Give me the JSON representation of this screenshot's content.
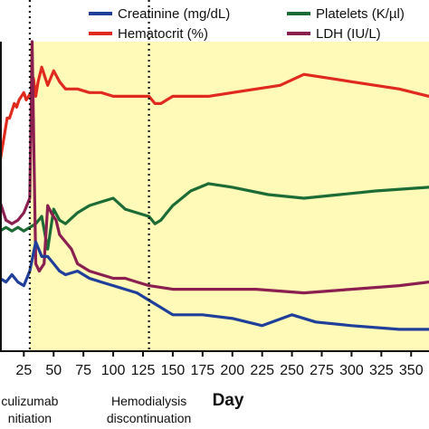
{
  "chart_data": {
    "type": "line",
    "xlabel": "Day",
    "ylabel": "",
    "xlim": [
      5,
      365
    ],
    "shaded_region": [
      30,
      365
    ],
    "x_ticks": [
      "25",
      "50",
      "75",
      "100",
      "125",
      "150",
      "175",
      "200",
      "225",
      "250",
      "275",
      "300",
      "325",
      "350"
    ],
    "x_tick_values": [
      25,
      50,
      75,
      100,
      125,
      150,
      175,
      200,
      225,
      250,
      275,
      300,
      325,
      350
    ],
    "annotations": [
      {
        "x": 30,
        "lines": [
          "culizumab",
          "nitiation"
        ]
      },
      {
        "x": 130,
        "lines": [
          "Hemodialysis",
          "discontinuation"
        ]
      }
    ],
    "legend": [
      {
        "label": "Creatinine (mg/dL)",
        "color": "#1f3f9a"
      },
      {
        "label": "Hematocrit (%)",
        "color": "#e02a1e"
      },
      {
        "label": "Platelets (K/µl)",
        "color": "#1d6b35"
      },
      {
        "label": "LDH (IU/L)",
        "color": "#8b1f4f"
      }
    ],
    "series": [
      {
        "name": "Hematocrit (%)",
        "color": "#e02a1e",
        "x": [
          5,
          7,
          9,
          11,
          13,
          15,
          17,
          19,
          21,
          23,
          25,
          27,
          29,
          31,
          33,
          35,
          37,
          40,
          45,
          50,
          55,
          60,
          70,
          80,
          90,
          100,
          110,
          120,
          130,
          135,
          140,
          145,
          150,
          160,
          180,
          200,
          220,
          240,
          260,
          280,
          300,
          320,
          340,
          365
        ],
        "y": [
          52,
          56,
          60,
          64,
          64,
          66,
          68,
          67,
          69,
          70,
          71,
          69,
          70,
          71,
          75,
          70,
          74,
          78,
          73,
          77,
          74,
          72,
          72,
          71,
          71,
          70,
          70,
          70,
          70,
          68,
          68,
          69,
          70,
          70,
          70,
          71,
          72,
          73,
          76,
          75,
          74,
          73,
          72,
          70
        ]
      },
      {
        "name": "Platelets (K/µl)",
        "color": "#1d6b35",
        "x": [
          5,
          10,
          15,
          20,
          25,
          30,
          35,
          40,
          45,
          50,
          55,
          60,
          70,
          80,
          90,
          100,
          110,
          120,
          130,
          135,
          140,
          145,
          150,
          165,
          180,
          200,
          230,
          260,
          290,
          320,
          365
        ],
        "y": [
          33,
          34,
          33,
          34,
          33,
          34,
          35,
          37,
          28,
          39,
          36,
          35,
          38,
          40,
          41,
          42,
          39,
          38,
          37,
          35,
          36,
          38,
          40,
          44,
          46,
          45,
          43,
          42,
          43,
          44,
          45
        ]
      },
      {
        "name": "LDH (IU/L)",
        "color": "#8b1f4f",
        "x": [
          5,
          10,
          15,
          20,
          25,
          30,
          32,
          35,
          38,
          42,
          45,
          48,
          52,
          55,
          60,
          65,
          70,
          80,
          90,
          100,
          110,
          120,
          130,
          150,
          180,
          220,
          260,
          300,
          340,
          365
        ],
        "y": [
          41,
          36,
          35,
          36,
          38,
          42,
          85,
          24,
          22,
          24,
          40,
          38,
          36,
          32,
          30,
          28,
          24,
          22,
          21,
          20,
          20,
          19,
          18,
          17,
          17,
          17,
          16,
          17,
          18,
          19
        ]
      },
      {
        "name": "Creatinine (mg/dL)",
        "color": "#1f3f9a",
        "x": [
          5,
          10,
          15,
          20,
          25,
          30,
          35,
          40,
          45,
          50,
          55,
          60,
          70,
          80,
          90,
          100,
          110,
          120,
          130,
          140,
          150,
          175,
          200,
          225,
          250,
          270,
          300,
          340,
          365
        ],
        "y": [
          20,
          19,
          21,
          19,
          18,
          22,
          30,
          26,
          26,
          24,
          22,
          21,
          22,
          20,
          19,
          18,
          17,
          16,
          14,
          12,
          10,
          10,
          9,
          7,
          10,
          8,
          7,
          6,
          6
        ]
      }
    ]
  }
}
